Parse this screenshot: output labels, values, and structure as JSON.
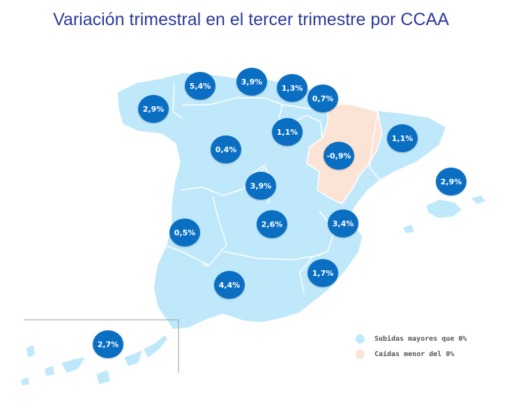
{
  "title": "Variación trimestral en el tercer trimestre por CCAA",
  "colors": {
    "increase_fill": "#bfe9fb",
    "decrease_fill": "#fbe4d6",
    "bubble": "#0a6fc2",
    "title": "#2b3a9b"
  },
  "regions": [
    {
      "name": "Galicia",
      "value": "2,9%",
      "status": "increase"
    },
    {
      "name": "Asturias",
      "value": "5,4%",
      "status": "increase"
    },
    {
      "name": "Cantabria",
      "value": "3,9%",
      "status": "increase"
    },
    {
      "name": "País Vasco",
      "value": "1,3%",
      "status": "increase"
    },
    {
      "name": "Navarra",
      "value": "0,7%",
      "status": "increase"
    },
    {
      "name": "La Rioja",
      "value": "1,1%",
      "status": "increase"
    },
    {
      "name": "Aragón",
      "value": "-0,9%",
      "status": "decrease"
    },
    {
      "name": "Cataluña",
      "value": "1,1%",
      "status": "increase"
    },
    {
      "name": "Castilla y León",
      "value": "0,4%",
      "status": "increase"
    },
    {
      "name": "Madrid",
      "value": "3,9%",
      "status": "increase"
    },
    {
      "name": "Extremadura",
      "value": "0,5%",
      "status": "increase"
    },
    {
      "name": "Castilla-La Mancha",
      "value": "2,6%",
      "status": "increase"
    },
    {
      "name": "Comunidad Valenciana",
      "value": "3,4%",
      "status": "increase"
    },
    {
      "name": "Baleares",
      "value": "2,9%",
      "status": "increase"
    },
    {
      "name": "Murcia",
      "value": "1,7%",
      "status": "increase"
    },
    {
      "name": "Andalucía",
      "value": "4,4%",
      "status": "increase"
    },
    {
      "name": "Canarias",
      "value": "2,7%",
      "status": "increase"
    }
  ],
  "legend": {
    "increase_label": "Subidas mayores que 0%",
    "decrease_label": "Caídas menor del 0%"
  }
}
